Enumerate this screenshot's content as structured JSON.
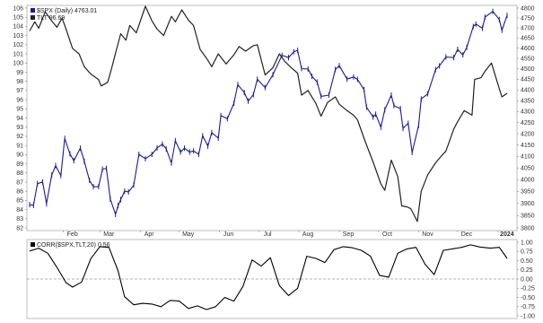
{
  "chart_data": [
    {
      "type": "line",
      "panel": "price",
      "legend": [
        {
          "label": "$SPX (Daily) 4763.01",
          "color": "#1a1a9e"
        },
        {
          "label": "TLT 96.69",
          "color": "#222222"
        }
      ],
      "x_ticks": [
        "Feb",
        "Mar",
        "Apr",
        "May",
        "Jun",
        "Jul",
        "Aug",
        "Sep",
        "Oct",
        "Nov",
        "Dec",
        "2024"
      ],
      "left_axis": {
        "ticks": [
          82,
          83,
          84,
          85,
          86,
          87,
          88,
          89,
          90,
          91,
          92,
          93,
          94,
          95,
          96,
          97,
          98,
          99,
          100,
          101,
          102,
          103,
          104,
          105,
          106
        ],
        "range": [
          82,
          106
        ]
      },
      "right_axis": {
        "ticks": [
          3800,
          3850,
          3900,
          3950,
          4000,
          4050,
          4100,
          4150,
          4200,
          4250,
          4300,
          4350,
          4400,
          4450,
          4500,
          4550,
          4600,
          4650,
          4700,
          4750,
          4800
        ],
        "range": [
          3800,
          4800
        ],
        "log": true
      },
      "series": [
        {
          "name": "$SPX (Daily)",
          "axis": "right",
          "color": "#1a1a9e",
          "points": [
            [
              "Jan 6",
              3895
            ],
            [
              "Jan 9",
              3892
            ],
            [
              "Jan 12",
              3983
            ],
            [
              "Jan 16",
              3990
            ],
            [
              "Jan 19",
              3899
            ],
            [
              "Jan 23",
              4019
            ],
            [
              "Jan 26",
              4060
            ],
            [
              "Jan 30",
              4017
            ],
            [
              "Feb 2",
              4179
            ],
            [
              "Feb 6",
              4111
            ],
            [
              "Feb 9",
              4081
            ],
            [
              "Feb 14",
              4136
            ],
            [
              "Feb 17",
              4079
            ],
            [
              "Feb 21",
              3997
            ],
            [
              "Feb 24",
              3970
            ],
            [
              "Feb 28",
              3970
            ],
            [
              "Mar 3",
              4045
            ],
            [
              "Mar 6",
              4048
            ],
            [
              "Mar 9",
              3918
            ],
            [
              "Mar 13",
              3855
            ],
            [
              "Mar 15",
              3891
            ],
            [
              "Mar 17",
              3916
            ],
            [
              "Mar 20",
              3951
            ],
            [
              "Mar 23",
              3948
            ],
            [
              "Mar 27",
              3977
            ],
            [
              "Mar 31",
              4109
            ],
            [
              "Apr 5",
              4090
            ],
            [
              "Apr 10",
              4109
            ],
            [
              "Apr 14",
              4137
            ],
            [
              "Apr 18",
              4154
            ],
            [
              "Apr 21",
              4133
            ],
            [
              "Apr 25",
              4071
            ],
            [
              "Apr 28",
              4169
            ],
            [
              "May 2",
              4119
            ],
            [
              "May 5",
              4136
            ],
            [
              "May 9",
              4119
            ],
            [
              "May 12",
              4124
            ],
            [
              "May 16",
              4109
            ],
            [
              "May 19",
              4191
            ],
            [
              "May 23",
              4145
            ],
            [
              "May 26",
              4205
            ],
            [
              "May 31",
              4180
            ],
            [
              "Jun 2",
              4282
            ],
            [
              "Jun 7",
              4267
            ],
            [
              "Jun 12",
              4338
            ],
            [
              "Jun 15",
              4425
            ],
            [
              "Jun 20",
              4388
            ],
            [
              "Jun 23",
              4348
            ],
            [
              "Jun 27",
              4378
            ],
            [
              "Jun 30",
              4450
            ],
            [
              "Jul 6",
              4411
            ],
            [
              "Jul 12",
              4472
            ],
            [
              "Jul 19",
              4565
            ],
            [
              "Jul 24",
              4554
            ],
            [
              "Jul 28",
              4582
            ],
            [
              "Jul 31",
              4589
            ],
            [
              "Aug 3",
              4501
            ],
            [
              "Aug 8",
              4499
            ],
            [
              "Aug 11",
              4464
            ],
            [
              "Aug 15",
              4437
            ],
            [
              "Aug 18",
              4370
            ],
            [
              "Aug 24",
              4376
            ],
            [
              "Aug 29",
              4497
            ],
            [
              "Sep 1",
              4515
            ],
            [
              "Sep 7",
              4451
            ],
            [
              "Sep 12",
              4461
            ],
            [
              "Sep 15",
              4450
            ],
            [
              "Sep 20",
              4402
            ],
            [
              "Sep 22",
              4320
            ],
            [
              "Sep 27",
              4275
            ],
            [
              "Sep 29",
              4288
            ],
            [
              "Oct 3",
              4229
            ],
            [
              "Oct 6",
              4308
            ],
            [
              "Oct 11",
              4376
            ],
            [
              "Oct 13",
              4327
            ],
            [
              "Oct 18",
              4314
            ],
            [
              "Oct 20",
              4224
            ],
            [
              "Oct 24",
              4247
            ],
            [
              "Oct 27",
              4117
            ],
            [
              "Nov 1",
              4237
            ],
            [
              "Nov 3",
              4358
            ],
            [
              "Nov 8",
              4382
            ],
            [
              "Nov 14",
              4496
            ],
            [
              "Nov 17",
              4514
            ],
            [
              "Nov 22",
              4557
            ],
            [
              "Nov 28",
              4554
            ],
            [
              "Dec 1",
              4594
            ],
            [
              "Dec 5",
              4567
            ],
            [
              "Dec 8",
              4604
            ],
            [
              "Dec 13",
              4707
            ],
            [
              "Dec 15",
              4719
            ],
            [
              "Dec 20",
              4698
            ],
            [
              "Dec 22",
              4754
            ],
            [
              "Dec 28",
              4783
            ],
            [
              "Jan 2",
              4742
            ],
            [
              "Jan 4",
              4688
            ],
            [
              "Jan 8",
              4763
            ]
          ]
        },
        {
          "name": "TLT",
          "axis": "left",
          "color": "#222222",
          "points": [
            [
              "Jan 6",
              103.5
            ],
            [
              "Jan 10",
              104.5
            ],
            [
              "Jan 13",
              103.8
            ],
            [
              "Jan 18",
              105.6
            ],
            [
              "Jan 23",
              104.6
            ],
            [
              "Jan 27",
              103.9
            ],
            [
              "Jan 31",
              104.9
            ],
            [
              "Feb 3",
              103.7
            ],
            [
              "Feb 8",
              101.6
            ],
            [
              "Feb 13",
              101.0
            ],
            [
              "Feb 17",
              99.6
            ],
            [
              "Feb 22",
              98.8
            ],
            [
              "Feb 28",
              98.2
            ],
            [
              "Mar 2",
              97.5
            ],
            [
              "Mar 7",
              97.9
            ],
            [
              "Mar 10",
              99.4
            ],
            [
              "Mar 14",
              101.6
            ],
            [
              "Mar 17",
              103.2
            ],
            [
              "Mar 21",
              102.5
            ],
            [
              "Mar 24",
              104.1
            ],
            [
              "Mar 29",
              103.3
            ],
            [
              "Apr 5",
              106.2
            ],
            [
              "Apr 10",
              104.6
            ],
            [
              "Apr 14",
              103.7
            ],
            [
              "Apr 19",
              103.0
            ],
            [
              "Apr 25",
              105.1
            ],
            [
              "Apr 28",
              104.5
            ],
            [
              "May 3",
              105.8
            ],
            [
              "May 8",
              104.7
            ],
            [
              "May 12",
              104.1
            ],
            [
              "May 17",
              101.5
            ],
            [
              "May 23",
              100.3
            ],
            [
              "May 26",
              99.6
            ],
            [
              "May 31",
              101.0
            ],
            [
              "Jun 6",
              99.9
            ],
            [
              "Jun 12",
              100.9
            ],
            [
              "Jun 16",
              101.8
            ],
            [
              "Jun 21",
              101.3
            ],
            [
              "Jun 27",
              101.9
            ],
            [
              "Jun 30",
              102.0
            ],
            [
              "Jul 6",
              98.7
            ],
            [
              "Jul 12",
              99.5
            ],
            [
              "Jul 17",
              101.0
            ],
            [
              "Jul 21",
              100.2
            ],
            [
              "Jul 26",
              99.5
            ],
            [
              "Jul 31",
              98.9
            ],
            [
              "Aug 3",
              96.5
            ],
            [
              "Aug 8",
              97.0
            ],
            [
              "Aug 14",
              95.6
            ],
            [
              "Aug 18",
              94.2
            ],
            [
              "Aug 23",
              95.7
            ],
            [
              "Aug 29",
              96.3
            ],
            [
              "Sep 1",
              95.5
            ],
            [
              "Sep 7",
              94.8
            ],
            [
              "Sep 12",
              94.3
            ],
            [
              "Sep 15",
              93.8
            ],
            [
              "Sep 21",
              91.4
            ],
            [
              "Sep 27",
              89.2
            ],
            [
              "Oct 3",
              86.8
            ],
            [
              "Oct 6",
              86.1
            ],
            [
              "Oct 11",
              89.4
            ],
            [
              "Oct 16",
              87.6
            ],
            [
              "Oct 19",
              84.4
            ],
            [
              "Oct 23",
              84.3
            ],
            [
              "Oct 26",
              84.1
            ],
            [
              "Oct 31",
              82.7
            ],
            [
              "Nov 3",
              86.0
            ],
            [
              "Nov 8",
              87.8
            ],
            [
              "Nov 14",
              89.1
            ],
            [
              "Nov 17",
              89.6
            ],
            [
              "Nov 22",
              90.4
            ],
            [
              "Nov 28",
              92.8
            ],
            [
              "Dec 1",
              93.6
            ],
            [
              "Dec 6",
              94.8
            ],
            [
              "Dec 12",
              94.3
            ],
            [
              "Dec 14",
              98.2
            ],
            [
              "Dec 19",
              98.4
            ],
            [
              "Dec 22",
              99.1
            ],
            [
              "Dec 27",
              100.0
            ],
            [
              "Jan 2",
              97.2
            ],
            [
              "Jan 4",
              96.3
            ],
            [
              "Jan 8",
              96.69
            ]
          ]
        }
      ],
      "grid": false
    },
    {
      "type": "line",
      "panel": "correlation",
      "legend": [
        {
          "label": "CORR($SPX,TLT,20) 0.56",
          "color": "#000000"
        }
      ],
      "y_ticks": [
        "1.00",
        "0.75",
        "0.50",
        "0.25",
        "0.00",
        "-0.25",
        "-0.50",
        "-0.75",
        "-1.00"
      ],
      "ylim": [
        -1.0,
        1.0
      ],
      "reference_line": 0.0,
      "series": [
        {
          "name": "CORR($SPX,TLT,20)",
          "color": "#000000",
          "points": [
            [
              "Jan 6",
              0.76
            ],
            [
              "Jan 13",
              0.84
            ],
            [
              "Jan 20",
              0.7
            ],
            [
              "Jan 27",
              0.32
            ],
            [
              "Feb 3",
              -0.1
            ],
            [
              "Feb 8",
              -0.22
            ],
            [
              "Feb 15",
              -0.08
            ],
            [
              "Feb 22",
              0.55
            ],
            [
              "Mar 1",
              0.88
            ],
            [
              "Mar 8",
              0.86
            ],
            [
              "Mar 15",
              0.22
            ],
            [
              "Mar 20",
              -0.48
            ],
            [
              "Mar 27",
              -0.7
            ],
            [
              "Apr 3",
              -0.66
            ],
            [
              "Apr 10",
              -0.68
            ],
            [
              "Apr 17",
              -0.75
            ],
            [
              "Apr 24",
              -0.58
            ],
            [
              "May 1",
              -0.6
            ],
            [
              "May 8",
              -0.8
            ],
            [
              "May 15",
              -0.73
            ],
            [
              "May 22",
              -0.83
            ],
            [
              "May 29",
              -0.75
            ],
            [
              "Jun 5",
              -0.5
            ],
            [
              "Jun 12",
              -0.6
            ],
            [
              "Jun 19",
              -0.2
            ],
            [
              "Jun 26",
              0.52
            ],
            [
              "Jul 3",
              0.35
            ],
            [
              "Jul 10",
              0.58
            ],
            [
              "Jul 17",
              -0.18
            ],
            [
              "Jul 24",
              -0.45
            ],
            [
              "Jul 31",
              -0.25
            ],
            [
              "Aug 7",
              0.62
            ],
            [
              "Aug 14",
              0.56
            ],
            [
              "Aug 21",
              0.45
            ],
            [
              "Aug 28",
              0.8
            ],
            [
              "Sep 4",
              0.88
            ],
            [
              "Sep 11",
              0.85
            ],
            [
              "Sep 18",
              0.78
            ],
            [
              "Sep 25",
              0.62
            ],
            [
              "Oct 2",
              0.1
            ],
            [
              "Oct 9",
              0.05
            ],
            [
              "Oct 16",
              0.7
            ],
            [
              "Oct 23",
              0.82
            ],
            [
              "Oct 30",
              0.86
            ],
            [
              "Nov 6",
              0.4
            ],
            [
              "Nov 13",
              0.12
            ],
            [
              "Nov 20",
              0.78
            ],
            [
              "Nov 27",
              0.82
            ],
            [
              "Dec 4",
              0.86
            ],
            [
              "Dec 11",
              0.93
            ],
            [
              "Dec 18",
              0.87
            ],
            [
              "Dec 26",
              0.84
            ],
            [
              "Jan 2",
              0.86
            ],
            [
              "Jan 8",
              0.56
            ]
          ]
        }
      ],
      "grid": false
    }
  ]
}
